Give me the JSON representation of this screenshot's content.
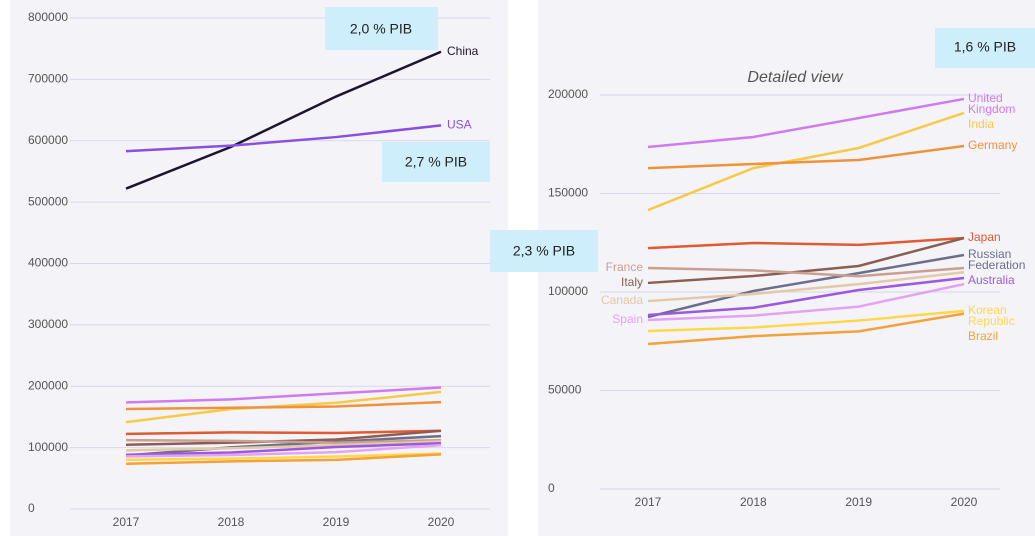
{
  "chart_data": [
    {
      "type": "line",
      "x": [
        2017,
        2018,
        2019,
        2020
      ],
      "xlim": [
        2017,
        2020
      ],
      "xticks": [
        2017,
        2018,
        2019,
        2020
      ],
      "ylim": [
        0,
        800000
      ],
      "yticks": [
        0,
        100000,
        200000,
        300000,
        400000,
        500000,
        600000,
        700000,
        800000
      ],
      "grid": true,
      "series": [
        {
          "name": "China",
          "color": "#1e1330",
          "values": [
            522000,
            590000,
            672000,
            745000
          ]
        },
        {
          "name": "USA",
          "color": "#8a4fe0",
          "values": [
            583000,
            592000,
            606000,
            625000
          ]
        },
        {
          "color": "#d07af0",
          "values": [
            173600,
            178700,
            188300,
            198000
          ]
        },
        {
          "color": "#f7c948",
          "values": [
            141600,
            162900,
            173100,
            190900
          ]
        },
        {
          "color": "#f0923a",
          "values": [
            162900,
            165000,
            167000,
            174100
          ]
        },
        {
          "color": "#e05a32",
          "values": [
            122300,
            124900,
            123900,
            127400
          ]
        },
        {
          "color": "#8c5e52",
          "values": [
            104600,
            108100,
            113200,
            127400
          ]
        },
        {
          "color": "#6b6f8a",
          "values": [
            87300,
            100500,
            109600,
            118800
          ]
        },
        {
          "color": "#c9a08f",
          "values": [
            112200,
            111000,
            108000,
            112200
          ]
        },
        {
          "color": "#e3c9a5",
          "values": [
            95400,
            99000,
            104000,
            110000
          ]
        },
        {
          "color": "#9b59e0",
          "values": [
            88300,
            92000,
            101000,
            107100
          ]
        },
        {
          "color": "#e4a2f2",
          "values": [
            85800,
            88000,
            92600,
            104000
          ]
        },
        {
          "color": "#ffd84a",
          "values": [
            80200,
            82000,
            85500,
            90400
          ]
        },
        {
          "color": "#f3a23a",
          "values": [
            73600,
            77600,
            80000,
            89000
          ]
        }
      ]
    },
    {
      "type": "line",
      "title": "Detailed view",
      "x": [
        2017,
        2018,
        2019,
        2020
      ],
      "xlim": [
        2017,
        2020
      ],
      "xticks": [
        2017,
        2018,
        2019,
        2020
      ],
      "ylim": [
        0,
        200000
      ],
      "yticks": [
        0,
        50000,
        100000,
        150000,
        200000
      ],
      "grid": true,
      "series": [
        {
          "name": "United Kingdom",
          "color": "#d07af0",
          "values": [
            173600,
            178700,
            188300,
            198000
          ],
          "label_side": "right"
        },
        {
          "name": "India",
          "color": "#f7c948",
          "values": [
            141600,
            162900,
            173100,
            190900
          ],
          "label_side": "right"
        },
        {
          "name": "Germany",
          "color": "#f0923a",
          "values": [
            162900,
            165000,
            167000,
            174100
          ],
          "label_side": "right"
        },
        {
          "name": "Japan",
          "color": "#e05a32",
          "values": [
            122300,
            124900,
            123900,
            127400
          ],
          "label_side": "right"
        },
        {
          "name": "Italy",
          "color": "#8c5e52",
          "values": [
            104600,
            108100,
            113200,
            127400
          ],
          "label_side": "left"
        },
        {
          "name": "Russian Federation",
          "color": "#6b6f8a",
          "values": [
            87300,
            100500,
            109600,
            118800
          ],
          "label_side": "right"
        },
        {
          "name": "France",
          "color": "#c9a08f",
          "values": [
            112200,
            111000,
            108000,
            112200
          ],
          "label_side": "left"
        },
        {
          "name": "Canada",
          "color": "#e3c9a5",
          "values": [
            95400,
            99000,
            104000,
            110000
          ],
          "label_side": "left"
        },
        {
          "name": "Australia",
          "color": "#9b59e0",
          "values": [
            88300,
            92000,
            101000,
            107100
          ],
          "label_side": "right"
        },
        {
          "name": "Spain",
          "color": "#e4a2f2",
          "values": [
            85800,
            88000,
            92600,
            104000
          ],
          "label_side": "left"
        },
        {
          "name": "Korean Republic",
          "color": "#ffd84a",
          "values": [
            80200,
            82000,
            85500,
            90400
          ],
          "label_side": "right"
        },
        {
          "name": "Brazil",
          "color": "#f3a23a",
          "values": [
            73600,
            77600,
            80000,
            89000
          ],
          "label_side": "right"
        }
      ]
    }
  ],
  "annotations": [
    "2,0 % PIB",
    "2,7 % PIB",
    "2,3 % PIB",
    "1,6 % PIB"
  ]
}
